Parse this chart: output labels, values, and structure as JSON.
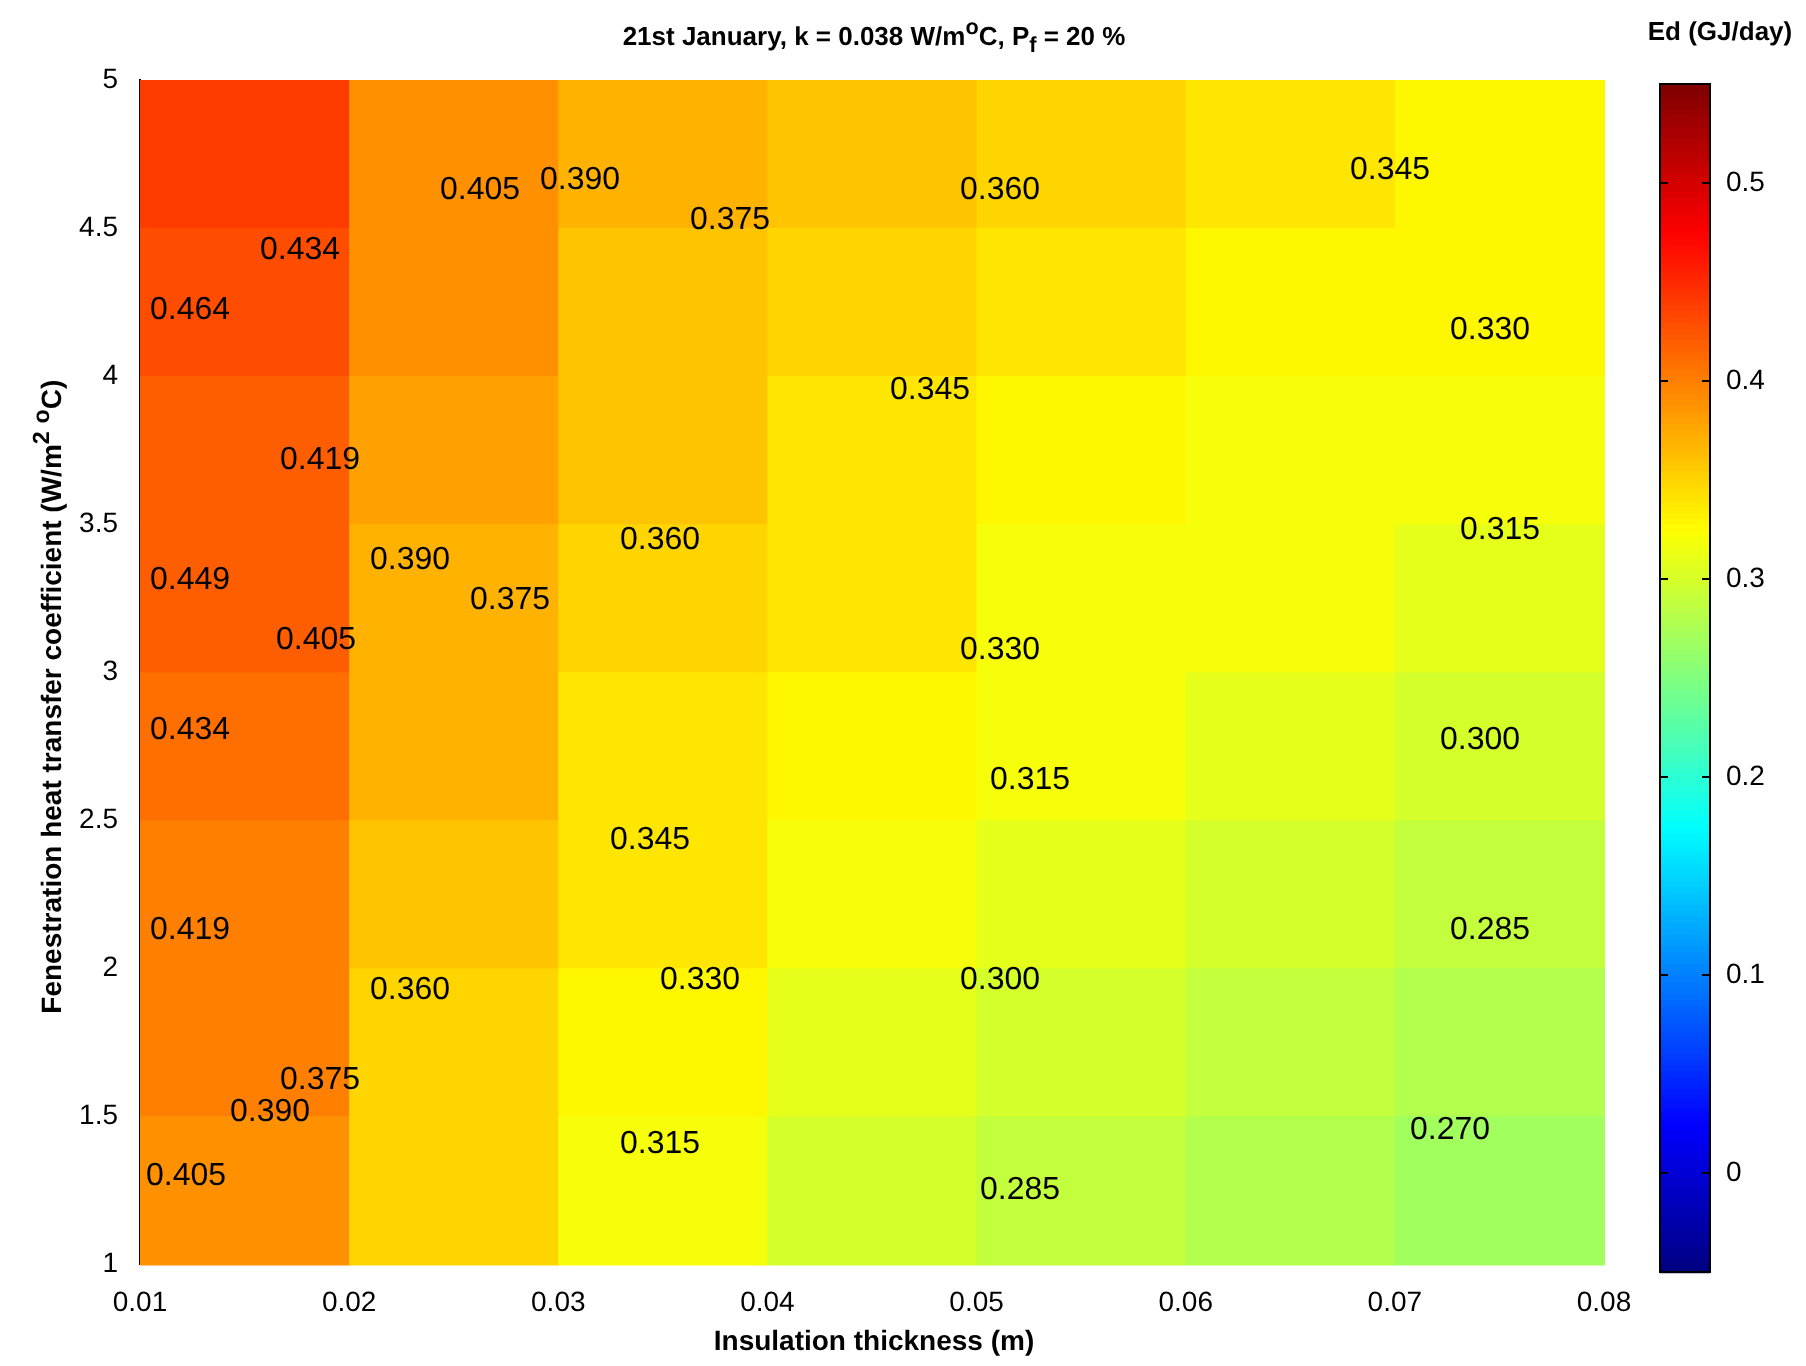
{
  "chart_data": {
    "type": "heatmap",
    "title": "21st January, k = 0.038 W/m$^{o}$C, P$_{f}$ = 20 %",
    "xlabel": "Insulation thickness (m)",
    "ylabel": "Fenestration heat transfer coefficient (W/m$^{2}$ $^{o}$C)",
    "clabel": "Ed (GJ/day)",
    "xlim": [
      0.01,
      0.08
    ],
    "xticks": [
      0.01,
      0.02,
      0.03,
      0.04,
      0.05,
      0.06,
      0.07,
      0.08
    ],
    "ylim": [
      1,
      5
    ],
    "yticks": [
      1,
      1.5,
      2,
      2.5,
      3,
      3.5,
      4,
      4.5,
      5
    ],
    "clim": [
      -0.05,
      0.55
    ],
    "cticks": [
      0,
      0.1,
      0.2,
      0.3,
      0.4,
      0.5
    ],
    "cells": [
      [
        0.44,
        0.39,
        0.37,
        0.36,
        0.35,
        0.34,
        0.33
      ],
      [
        0.43,
        0.39,
        0.36,
        0.35,
        0.34,
        0.33,
        0.33
      ],
      [
        0.42,
        0.38,
        0.36,
        0.34,
        0.33,
        0.32,
        0.32
      ],
      [
        0.42,
        0.37,
        0.35,
        0.34,
        0.32,
        0.32,
        0.31
      ],
      [
        0.41,
        0.37,
        0.34,
        0.33,
        0.32,
        0.31,
        0.3
      ],
      [
        0.4,
        0.36,
        0.34,
        0.32,
        0.31,
        0.3,
        0.29
      ],
      [
        0.4,
        0.35,
        0.33,
        0.31,
        0.3,
        0.29,
        0.28
      ],
      [
        0.39,
        0.35,
        0.32,
        0.3,
        0.29,
        0.28,
        0.27
      ]
    ],
    "annotations": [
      "0.464",
      "0.449",
      "0.434",
      "0.419",
      "0.405",
      "0.390",
      "0.375",
      "0.360",
      "0.315",
      "0.285",
      "0.270",
      "0.434",
      "0.419",
      "0.405",
      "0.390",
      "0.390",
      "0.405",
      "0.375",
      "0.375",
      "0.360",
      "0.360",
      "0.345",
      "0.345",
      "0.345",
      "0.330",
      "0.330",
      "0.330",
      "0.315",
      "0.315",
      "0.300",
      "0.300",
      "0.285"
    ]
  }
}
